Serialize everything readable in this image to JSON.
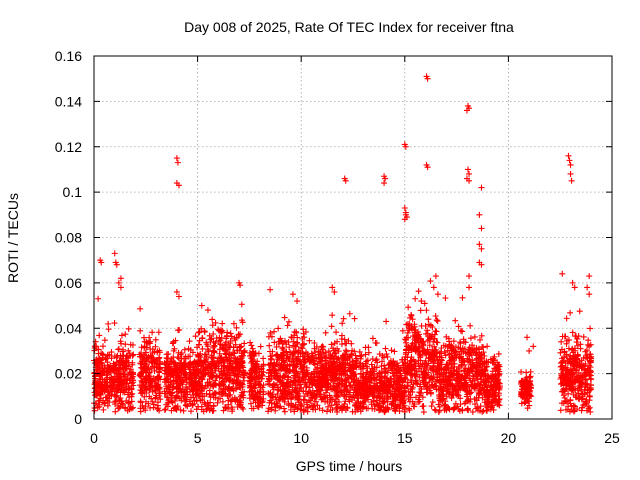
{
  "chart_data": {
    "type": "scatter",
    "title": "Day 008 of 2025, Rate Of TEC Index for receiver ftna",
    "xlabel": "GPS time / hours",
    "ylabel": "ROTI / TECUs",
    "xlim": [
      0,
      25
    ],
    "ylim": [
      0,
      0.16
    ],
    "x_ticks": [
      0,
      5,
      10,
      15,
      20,
      25
    ],
    "x_tick_labels": [
      "0",
      "5",
      "10",
      "15",
      "20",
      "25"
    ],
    "y_ticks": [
      0,
      0.02,
      0.04,
      0.06,
      0.08,
      0.1,
      0.12,
      0.14,
      0.16
    ],
    "y_tick_labels": [
      "0",
      "0.02",
      "0.04",
      "0.06",
      "0.08",
      "0.1",
      "0.12",
      "0.14",
      "0.16"
    ],
    "grid": true,
    "marker": "+",
    "marker_color": "#ff0000",
    "series": [
      {
        "segments": [
          {
            "x_start": 0.0,
            "x_end": 1.9,
            "baseline": 0.018,
            "spread": 0.012
          },
          {
            "x_start": 2.2,
            "x_end": 3.2,
            "baseline": 0.02,
            "spread": 0.013
          },
          {
            "x_start": 3.4,
            "x_end": 5.0,
            "baseline": 0.017,
            "spread": 0.011
          },
          {
            "x_start": 5.0,
            "x_end": 7.3,
            "baseline": 0.02,
            "spread": 0.014
          },
          {
            "x_start": 7.5,
            "x_end": 8.2,
            "baseline": 0.017,
            "spread": 0.01
          },
          {
            "x_start": 8.4,
            "x_end": 10.3,
            "baseline": 0.019,
            "spread": 0.013
          },
          {
            "x_start": 10.3,
            "x_end": 11.3,
            "baseline": 0.017,
            "spread": 0.011
          },
          {
            "x_start": 11.3,
            "x_end": 12.5,
            "baseline": 0.02,
            "spread": 0.013
          },
          {
            "x_start": 12.5,
            "x_end": 15.0,
            "baseline": 0.014,
            "spread": 0.01
          },
          {
            "x_start": 15.0,
            "x_end": 16.6,
            "baseline": 0.024,
            "spread": 0.016
          },
          {
            "x_start": 16.6,
            "x_end": 18.8,
            "baseline": 0.019,
            "spread": 0.013
          },
          {
            "x_start": 18.8,
            "x_end": 19.6,
            "baseline": 0.015,
            "spread": 0.009
          },
          {
            "x_start": 20.6,
            "x_end": 21.1,
            "baseline": 0.014,
            "spread": 0.006
          },
          {
            "x_start": 22.5,
            "x_end": 24.0,
            "baseline": 0.019,
            "spread": 0.013
          }
        ],
        "outliers": [
          [
            0.3,
            0.07
          ],
          [
            0.35,
            0.069
          ],
          [
            0.2,
            0.053
          ],
          [
            1.0,
            0.073
          ],
          [
            1.05,
            0.069
          ],
          [
            1.1,
            0.068
          ],
          [
            1.2,
            0.06
          ],
          [
            1.3,
            0.058
          ],
          [
            1.3,
            0.062
          ],
          [
            4.0,
            0.115
          ],
          [
            4.05,
            0.113
          ],
          [
            4.0,
            0.104
          ],
          [
            4.1,
            0.103
          ],
          [
            4.0,
            0.056
          ],
          [
            4.1,
            0.054
          ],
          [
            7.0,
            0.06
          ],
          [
            7.05,
            0.059
          ],
          [
            5.2,
            0.05
          ],
          [
            5.5,
            0.048
          ],
          [
            8.5,
            0.057
          ],
          [
            9.6,
            0.055
          ],
          [
            9.8,
            0.052
          ],
          [
            11.5,
            0.058
          ],
          [
            11.6,
            0.056
          ],
          [
            12.1,
            0.106
          ],
          [
            12.15,
            0.105
          ],
          [
            14.0,
            0.107
          ],
          [
            14.05,
            0.106
          ],
          [
            14.0,
            0.104
          ],
          [
            14.1,
            0.043
          ],
          [
            15.0,
            0.121
          ],
          [
            15.05,
            0.12
          ],
          [
            15.0,
            0.093
          ],
          [
            15.05,
            0.091
          ],
          [
            15.1,
            0.089
          ],
          [
            15.0,
            0.088
          ],
          [
            15.05,
            0.09
          ],
          [
            16.05,
            0.151
          ],
          [
            16.1,
            0.15
          ],
          [
            16.05,
            0.112
          ],
          [
            16.1,
            0.111
          ],
          [
            16.5,
            0.063
          ],
          [
            16.4,
            0.058
          ],
          [
            16.6,
            0.055
          ],
          [
            15.5,
            0.053
          ],
          [
            15.8,
            0.052
          ],
          [
            18.05,
            0.138
          ],
          [
            18.1,
            0.137
          ],
          [
            18.0,
            0.136
          ],
          [
            18.05,
            0.11
          ],
          [
            18.1,
            0.108
          ],
          [
            18.0,
            0.106
          ],
          [
            18.1,
            0.105
          ],
          [
            18.1,
            0.063
          ],
          [
            18.1,
            0.058
          ],
          [
            18.7,
            0.102
          ],
          [
            18.6,
            0.09
          ],
          [
            18.7,
            0.084
          ],
          [
            18.6,
            0.077
          ],
          [
            18.7,
            0.075
          ],
          [
            18.6,
            0.069
          ],
          [
            18.7,
            0.068
          ],
          [
            22.9,
            0.116
          ],
          [
            22.95,
            0.114
          ],
          [
            23.0,
            0.112
          ],
          [
            23.0,
            0.108
          ],
          [
            23.05,
            0.105
          ],
          [
            22.6,
            0.064
          ],
          [
            23.1,
            0.06
          ],
          [
            23.2,
            0.058
          ],
          [
            23.9,
            0.063
          ],
          [
            23.8,
            0.058
          ],
          [
            23.9,
            0.055
          ],
          [
            21.2,
            0.032
          ],
          [
            20.9,
            0.036
          ],
          [
            21.0,
            0.03
          ]
        ]
      }
    ]
  }
}
